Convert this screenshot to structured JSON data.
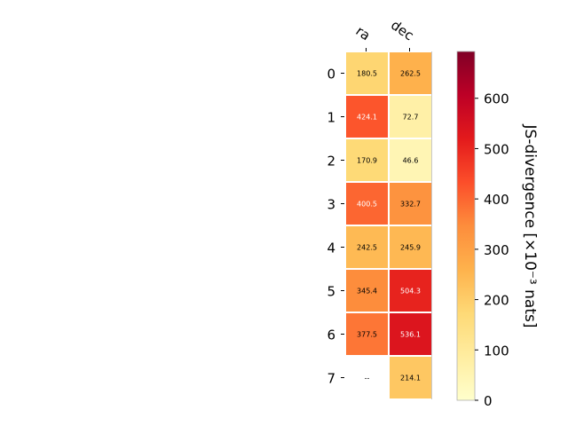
{
  "chart_data": {
    "type": "heatmap",
    "columns": [
      "ra",
      "dec"
    ],
    "rows": [
      "0",
      "1",
      "2",
      "3",
      "4",
      "5",
      "6",
      "7"
    ],
    "values": [
      [
        180.5,
        262.5
      ],
      [
        424.1,
        72.7
      ],
      [
        170.9,
        46.6
      ],
      [
        400.5,
        332.7
      ],
      [
        242.5,
        245.9
      ],
      [
        345.4,
        504.3
      ],
      [
        377.5,
        536.1
      ],
      [
        null,
        214.1
      ]
    ],
    "cell_labels": [
      [
        "180.5",
        "262.5"
      ],
      [
        "424.1",
        "72.7"
      ],
      [
        "170.9",
        "46.6"
      ],
      [
        "400.5",
        "332.7"
      ],
      [
        "242.5",
        "245.9"
      ],
      [
        "345.4",
        "504.3"
      ],
      [
        "377.5",
        "536.1"
      ],
      [
        "--",
        "214.1"
      ]
    ],
    "colorbar": {
      "label": "JS-divergence [×10⁻³ nats]",
      "min": 0,
      "max": 693,
      "ticks": [
        0,
        100,
        200,
        300,
        400,
        500,
        600
      ],
      "tick_labels": [
        "0",
        "100",
        "200",
        "300",
        "400",
        "500",
        "600"
      ],
      "colormap": "YlOrRd",
      "colors": [
        "#ffffcc",
        "#ffeda0",
        "#fed976",
        "#feb24c",
        "#fd8d3c",
        "#fc4e2a",
        "#e31a1c",
        "#bd0026",
        "#800026"
      ]
    },
    "grid": false
  }
}
